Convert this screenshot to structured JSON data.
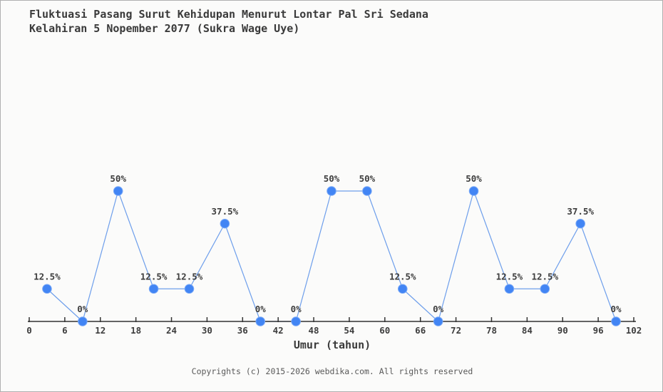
{
  "title": {
    "line1": "Fluktuasi Pasang Surut Kehidupan Menurut Lontar Pal Sri Sedana",
    "line2": "Kelahiran 5 Nopember 2077 (Sukra Wage Uye)"
  },
  "chart_data": {
    "type": "line",
    "x": [
      3,
      9,
      15,
      21,
      27,
      33,
      39,
      45,
      51,
      57,
      63,
      69,
      75,
      81,
      87,
      93,
      99
    ],
    "values": [
      12.5,
      0,
      50,
      12.5,
      12.5,
      37.5,
      0,
      0,
      50,
      50,
      12.5,
      0,
      50,
      12.5,
      12.5,
      37.5,
      0
    ],
    "point_labels": [
      "12.5%",
      "0%",
      "50%",
      "12.5%",
      "12.5%",
      "37.5%",
      "0%",
      "0%",
      "50%",
      "50%",
      "12.5%",
      "0%",
      "50%",
      "12.5%",
      "12.5%",
      "37.5%",
      "0%"
    ],
    "title": "Fluktuasi Pasang Surut Kehidupan Menurut Lontar Pal Sri Sedana Kelahiran 5 Nopember 2077 (Sukra Wage Uye)",
    "xlabel": "Umur (tahun)",
    "ylabel": "",
    "x_ticks": [
      0,
      6,
      12,
      18,
      24,
      30,
      36,
      42,
      48,
      54,
      60,
      66,
      72,
      78,
      84,
      90,
      96,
      102
    ],
    "xlim": [
      0,
      102
    ],
    "ylim": [
      0,
      100
    ],
    "grid": false,
    "legend": null,
    "colors": {
      "marker": "#4285f4",
      "marker_stroke": "#7baaf7",
      "line": "#6d9eeb",
      "axis": "#333333",
      "text": "#3d3d3d"
    }
  },
  "footer": {
    "text": "Copyrights (c) 2015-2026 webdika.com. All rights reserved"
  }
}
